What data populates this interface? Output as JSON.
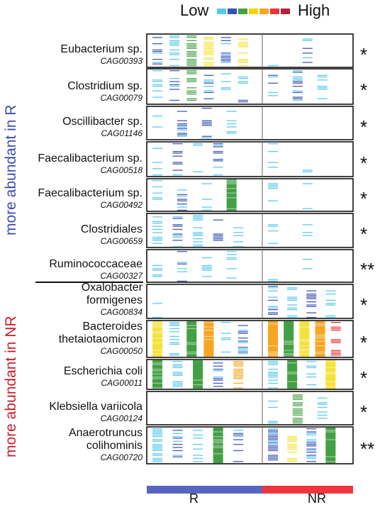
{
  "legend": {
    "low_label": "Low",
    "high_label": "High",
    "scale_colors": [
      "#56c8f0",
      "#3a52b5",
      "#43a045",
      "#f5d400",
      "#f6a623",
      "#e8343a",
      "#b5213a"
    ]
  },
  "side_labels": {
    "top": "more abundant in R",
    "top_color": "#3a4db0",
    "bottom": "more abundant in NR",
    "bottom_color": "#c8202e"
  },
  "groups": {
    "r_label": "R",
    "nr_label": "NR",
    "r_color": "#5865c0",
    "nr_color": "#f0353d"
  },
  "taxa": [
    {
      "lines": [
        "Eubacterium sp."
      ],
      "cag": "CAG00393",
      "sig": "*",
      "r_cols": [
        [
          "b",
          0.5
        ],
        [
          "c",
          0.5
        ],
        [
          "g",
          0.6
        ],
        [
          "y",
          0.7
        ],
        [
          "b",
          0.5
        ],
        [
          "y",
          0.6
        ]
      ],
      "nr_cols": [
        [
          "c",
          0.08
        ],
        [
          "b",
          0.3
        ]
      ]
    },
    {
      "lines": [
        "Clostridium sp."
      ],
      "cag": "CAG00079",
      "sig": "*",
      "r_cols": [
        [
          "c",
          0.4
        ],
        [
          "b",
          0.4
        ],
        [
          "g",
          0.7
        ],
        [
          "b",
          0.4
        ],
        [
          "c",
          0.3
        ],
        [
          "b",
          0.5
        ]
      ],
      "nr_cols": [
        [
          "b",
          0.4
        ],
        [
          "b",
          0.3
        ],
        [
          "c",
          0.3
        ]
      ]
    },
    {
      "lines": [
        "Oscillibacter sp."
      ],
      "cag": "CAG01146",
      "sig": "*",
      "r_cols": [
        [
          "c",
          0.2
        ],
        [
          "b",
          0.4
        ],
        [
          "b",
          0.4
        ],
        [
          "c",
          0.3
        ]
      ],
      "nr_cols": []
    },
    {
      "lines": [
        "Faecalibacterium sp."
      ],
      "cag": "CAG00518",
      "sig": "*",
      "r_cols": [
        [
          "c",
          0.3
        ],
        [
          "b",
          0.3
        ],
        [
          "c",
          0.2
        ],
        [
          "b",
          0.5
        ],
        [
          "c",
          0.1
        ]
      ],
      "nr_cols": [
        [
          "c",
          0.2
        ],
        [
          "c",
          0.1
        ]
      ]
    },
    {
      "lines": [
        "Faecalibacterium sp."
      ],
      "cag": "CAG00492",
      "sig": "*",
      "r_cols": [
        [
          "c",
          0.3
        ],
        [
          "b",
          0.3
        ],
        [
          "c",
          0.2
        ],
        [
          "g",
          1.0
        ]
      ],
      "nr_cols": [
        [
          "c",
          0.1
        ],
        [
          "c",
          0.05
        ]
      ]
    },
    {
      "lines": [
        "Clostridiales"
      ],
      "cag": "CAG00659",
      "sig": "*",
      "r_cols": [
        [
          "c",
          0.4
        ],
        [
          "b",
          0.5
        ],
        [
          "c",
          0.3
        ],
        [
          "b",
          0.3
        ],
        [
          "c",
          0.3
        ]
      ],
      "nr_cols": [
        [
          "c",
          0.2
        ],
        [
          "c",
          0.1
        ]
      ]
    },
    {
      "lines": [
        "Ruminococcaceae"
      ],
      "cag": "CAG00327",
      "sig": "**",
      "r_cols": [
        [
          "c",
          0.4
        ],
        [
          "b",
          0.4
        ],
        [
          "c",
          0.3
        ],
        [
          "c",
          0.2
        ]
      ],
      "nr_cols": [
        [
          "c",
          0.2
        ],
        [
          "c",
          0.1
        ]
      ]
    },
    {
      "lines": [
        "Oxalobacter",
        "formigenes"
      ],
      "cag": "CAG00834",
      "sig": "*",
      "r_cols": [
        [
          "c",
          0.1
        ]
      ],
      "nr_cols": [
        [
          "b",
          0.5
        ],
        [
          "c",
          0.4
        ],
        [
          "b",
          0.4
        ],
        [
          "c",
          0.3
        ]
      ]
    },
    {
      "lines": [
        "Bacteroides",
        "thetaiotaomicron"
      ],
      "cag": "CAG00050",
      "sig": "*",
      "r_cols": [
        [
          "y",
          0.9
        ],
        [
          "c",
          0.5
        ],
        [
          "g",
          0.8
        ],
        [
          "o",
          0.8
        ],
        [
          "c",
          0.4
        ],
        [
          "b",
          0.5
        ]
      ],
      "nr_cols": [
        [
          "o",
          0.9
        ],
        [
          "g",
          0.8
        ],
        [
          "y",
          0.8
        ],
        [
          "o",
          0.9
        ],
        [
          "r",
          0.5
        ]
      ]
    },
    {
      "lines": [
        "Escherichia coli"
      ],
      "cag": "CAG00011",
      "sig": "*",
      "r_cols": [
        [
          "g",
          0.9
        ],
        [
          "c",
          0.5
        ],
        [
          "g",
          0.8
        ],
        [
          "b",
          0.5
        ],
        [
          "o",
          0.7
        ]
      ],
      "nr_cols": [
        [
          "c",
          0.5
        ],
        [
          "g",
          0.8
        ],
        [
          "c",
          0.5
        ],
        [
          "y",
          0.9
        ]
      ]
    },
    {
      "lines": [
        "Klebsiella variicola"
      ],
      "cag": "CAG00124",
      "sig": "*",
      "r_cols": [],
      "nr_cols": [
        [
          "c",
          0.2
        ],
        [
          "g",
          0.6
        ],
        [
          "c",
          0.3
        ]
      ]
    },
    {
      "lines": [
        "Anaerotruncus",
        "colihominis"
      ],
      "cag": "CAG00720",
      "sig": "**",
      "r_cols": [
        [
          "c",
          0.7
        ],
        [
          "b",
          0.6
        ],
        [
          "c",
          0.5
        ],
        [
          "g",
          0.8
        ],
        [
          "b",
          0.5
        ]
      ],
      "nr_cols": [
        [
          "b",
          0.7
        ],
        [
          "y",
          0.7
        ],
        [
          "b",
          0.6
        ],
        [
          "g",
          0.8
        ]
      ]
    }
  ]
}
